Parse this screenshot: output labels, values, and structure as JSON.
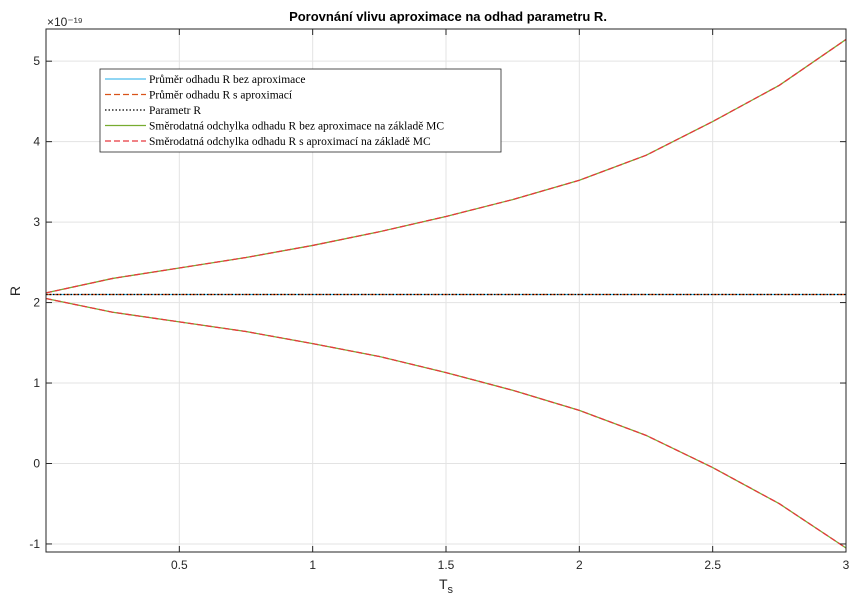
{
  "chart_data": {
    "type": "line",
    "title": "Porovnání vlivu aproximace na odhad parametru R.",
    "xlabel": "T",
    "xlabel_sub": "s",
    "ylabel": "R",
    "y_exponent": "×10⁻¹⁹",
    "xlim": [
      0,
      3
    ],
    "ylim": [
      -1.1,
      5.4
    ],
    "x_ticks": [
      0.5,
      1,
      1.5,
      2,
      2.5,
      3
    ],
    "x_tick_labels": [
      "0.5",
      "1",
      "1.5",
      "2",
      "2.5",
      "3"
    ],
    "y_ticks": [
      -1,
      0,
      1,
      2,
      3,
      4,
      5
    ],
    "y_tick_labels": [
      "-1",
      "0",
      "1",
      "2",
      "3",
      "4",
      "5"
    ],
    "grid": true,
    "legend_position": "top-left",
    "x": [
      0,
      0.25,
      0.5,
      0.75,
      1.0,
      1.25,
      1.5,
      1.75,
      2.0,
      2.25,
      2.5,
      2.75,
      3.0
    ],
    "series": [
      {
        "name": "Průměr odhadu R bez aproximace",
        "color": "#4dbeee",
        "dash": "solid",
        "values": [
          2.1,
          2.1,
          2.1,
          2.1,
          2.1,
          2.1,
          2.1,
          2.1,
          2.1,
          2.1,
          2.1,
          2.1,
          2.1
        ]
      },
      {
        "name": "Průměr odhadu R s aproximací",
        "color": "#d95319",
        "dash": "dashed",
        "values": [
          2.1,
          2.1,
          2.1,
          2.1,
          2.1,
          2.1,
          2.1,
          2.1,
          2.1,
          2.1,
          2.1,
          2.1,
          2.1
        ]
      },
      {
        "name": "Parametr R",
        "color": "#000000",
        "dash": "dotted",
        "values": [
          2.1,
          2.1,
          2.1,
          2.1,
          2.1,
          2.1,
          2.1,
          2.1,
          2.1,
          2.1,
          2.1,
          2.1,
          2.1
        ]
      },
      {
        "name": "Směrodatná odchylka odhadu R bez aproximace na základě MC",
        "color": "#77ac30",
        "dash": "solid",
        "upper": [
          2.12,
          2.3,
          2.43,
          2.56,
          2.71,
          2.88,
          3.07,
          3.28,
          3.52,
          3.83,
          4.25,
          4.7,
          5.27
        ],
        "lower": [
          2.05,
          1.88,
          1.76,
          1.64,
          1.49,
          1.33,
          1.13,
          0.91,
          0.66,
          0.35,
          -0.05,
          -0.5,
          -1.05
        ]
      },
      {
        "name": "Směrodatná odchylka odhadu R s aproximací na základě MC",
        "color": "#e8383d",
        "dash": "dashed",
        "upper": [
          2.12,
          2.3,
          2.43,
          2.56,
          2.71,
          2.88,
          3.07,
          3.28,
          3.52,
          3.83,
          4.25,
          4.7,
          5.27
        ],
        "lower": [
          2.05,
          1.88,
          1.76,
          1.64,
          1.49,
          1.33,
          1.13,
          0.91,
          0.66,
          0.35,
          -0.05,
          -0.5,
          -1.05
        ]
      }
    ]
  }
}
